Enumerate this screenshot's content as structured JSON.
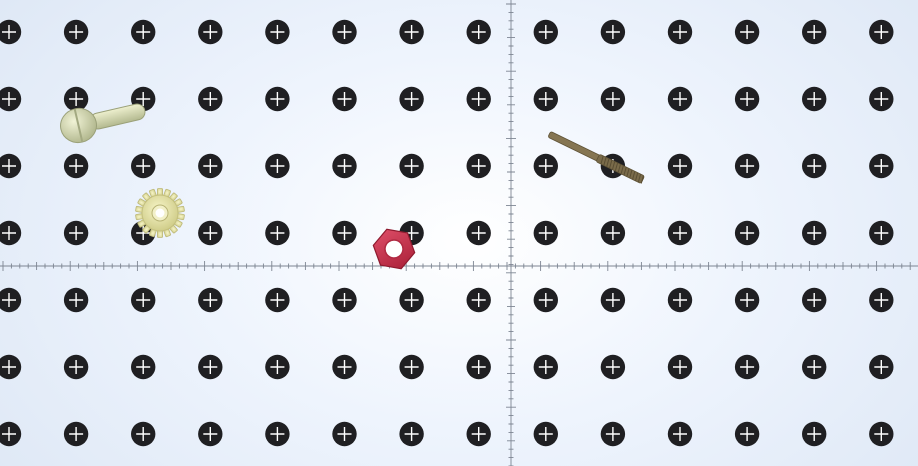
{
  "scene": {
    "type": "pegboard-parts-placement",
    "colors": {
      "background": "#eaf1fb",
      "hole": "#1f1f22",
      "hole_cross": "#ffffff",
      "ruler": "#7d8592",
      "bolt": "#d7dcb0",
      "gear": "#ece9a8",
      "nut": "#cc3048",
      "rod": "#7a6b4a"
    },
    "grid": {
      "columns": 14,
      "rows": 7
    },
    "rulers": {
      "horizontal": true,
      "vertical": true
    },
    "parts": [
      {
        "id": "bolt",
        "icon": "bolt-icon",
        "color": "bolt"
      },
      {
        "id": "gear",
        "icon": "gear-icon",
        "color": "gear"
      },
      {
        "id": "nut",
        "icon": "hex-nut-icon",
        "color": "nut"
      },
      {
        "id": "threaded-rod",
        "icon": "threaded-rod-icon",
        "color": "rod"
      }
    ]
  }
}
